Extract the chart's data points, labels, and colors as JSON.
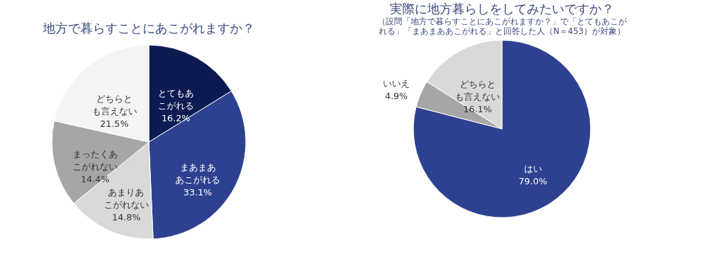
{
  "chart_data": [
    {
      "type": "pie",
      "title": "地方で暮らすことにあこがれますか？",
      "categories": [
        "とてもあこがれる",
        "まあまああこがれる",
        "あまりあこがれない",
        "まったくあこがれない",
        "どちらとも言えない"
      ],
      "values": [
        16.2,
        33.1,
        14.8,
        14.4,
        21.5
      ],
      "value_labels": [
        "16.2%",
        "33.1%",
        "14.8%",
        "14.4%",
        "21.5%"
      ],
      "colors": [
        "#0d1b52",
        "#2e4190",
        "#d9d9d9",
        "#a6a6a6",
        "#f4f4f2"
      ]
    },
    {
      "type": "pie",
      "title": "実際に地方暮らしをしてみたいですか？",
      "subtitle": "（設問「地方で暮らすことにあこがれますか？」で「とてもあこがれる」「まあまああこがれる」と回答した人（N＝453）が対象）",
      "categories": [
        "はい",
        "いいえ",
        "どちらとも言えない"
      ],
      "values": [
        79.0,
        4.9,
        16.1
      ],
      "value_labels": [
        "79.0%",
        "4.9%",
        "16.1%"
      ],
      "colors": [
        "#2e4190",
        "#a6a6a6",
        "#d9d9d9"
      ]
    }
  ]
}
